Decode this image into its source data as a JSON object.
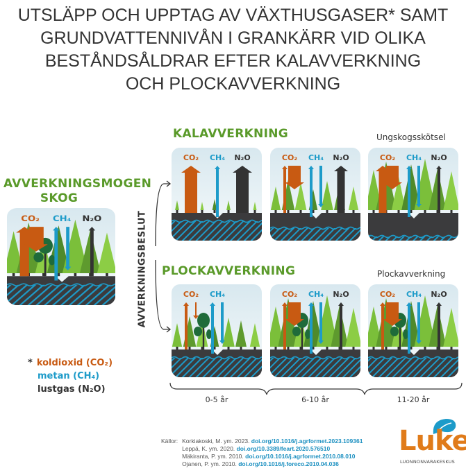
{
  "title": {
    "lines": [
      "UTSLÄPP OCH UPPTAG AV VÄXTHUSGASER* SAMT",
      "GRUNDVATTENNIVÅN I GRANKÄRR VID OLIKA",
      "BESTÅNDSÅLDRAR EFTER KALAVVERKNING",
      "OCH PLOCKAVVERKNING"
    ]
  },
  "colors": {
    "co2": "#c85a12",
    "ch4": "#1d9bc9",
    "n2o": "#333333",
    "heading_green": "#5a9a2a",
    "ground": "#3b3b3d"
  },
  "start": {
    "heading_line1": "AVVERKNINGSMOGEN",
    "heading_line2": "SKOG",
    "decision": "AVVERKNINGSBESLUT",
    "panel": {
      "stand": "mature",
      "deciduous": true,
      "water_level": "high",
      "arrows": [
        {
          "gas": "co2",
          "direction": "up",
          "strength": "medium"
        },
        {
          "gas": "co2",
          "direction": "down",
          "strength": "large"
        },
        {
          "gas": "ch4",
          "direction": "up",
          "strength": "small"
        },
        {
          "gas": "ch4",
          "direction": "down",
          "strength": "small"
        },
        {
          "gas": "n2o",
          "direction": "up",
          "strength": "small"
        }
      ]
    }
  },
  "gas_labels": {
    "co2": "CO₂",
    "ch4": "CH₄",
    "n2o": "N₂O"
  },
  "clearcut": {
    "heading": "KALAVVERKNING",
    "final_label": "Ungskogsskötsel",
    "panels": [
      {
        "stand": "seedlings",
        "deciduous": false,
        "water_level": "high",
        "arrows": [
          {
            "gas": "co2",
            "direction": "up",
            "strength": "large"
          },
          {
            "gas": "ch4",
            "direction": "up",
            "strength": "small"
          },
          {
            "gas": "n2o",
            "direction": "up",
            "strength": "large"
          }
        ]
      },
      {
        "stand": "young",
        "deciduous": false,
        "water_level": "mid",
        "arrows": [
          {
            "gas": "co2",
            "direction": "up",
            "strength": "small"
          },
          {
            "gas": "co2",
            "direction": "down",
            "strength": "large"
          },
          {
            "gas": "ch4",
            "direction": "up",
            "strength": "small"
          },
          {
            "gas": "ch4",
            "direction": "down",
            "strength": "small"
          },
          {
            "gas": "n2o",
            "direction": "up",
            "strength": "medium"
          }
        ]
      },
      {
        "stand": "mature",
        "deciduous": false,
        "water_level": "low",
        "arrows": [
          {
            "gas": "co2",
            "direction": "up",
            "strength": "medium"
          },
          {
            "gas": "co2",
            "direction": "down",
            "strength": "large"
          },
          {
            "gas": "ch4",
            "direction": "up",
            "strength": "small"
          },
          {
            "gas": "ch4",
            "direction": "down",
            "strength": "small"
          },
          {
            "gas": "n2o",
            "direction": "up",
            "strength": "small"
          }
        ]
      }
    ]
  },
  "selective": {
    "heading": "PLOCKAVVERKNING",
    "final_label": "Plockavverkning",
    "panels": [
      {
        "stand": "young",
        "deciduous": true,
        "water_level": "high",
        "arrows": [
          {
            "gas": "co2",
            "direction": "up",
            "strength": "small"
          },
          {
            "gas": "co2",
            "direction": "down",
            "strength": "tiny"
          },
          {
            "gas": "ch4",
            "direction": "up",
            "strength": "small"
          },
          {
            "gas": "ch4",
            "direction": "down",
            "strength": "small"
          }
        ]
      },
      {
        "stand": "mature",
        "deciduous": true,
        "water_level": "high",
        "arrows": [
          {
            "gas": "co2",
            "direction": "up",
            "strength": "small"
          },
          {
            "gas": "co2",
            "direction": "down",
            "strength": "large"
          },
          {
            "gas": "ch4",
            "direction": "up",
            "strength": "small"
          },
          {
            "gas": "ch4",
            "direction": "down",
            "strength": "small"
          },
          {
            "gas": "n2o",
            "direction": "up",
            "strength": "small"
          }
        ]
      },
      {
        "stand": "mature",
        "deciduous": true,
        "water_level": "high",
        "arrows": [
          {
            "gas": "co2",
            "direction": "up",
            "strength": "small"
          },
          {
            "gas": "co2",
            "direction": "down",
            "strength": "large"
          },
          {
            "gas": "ch4",
            "direction": "up",
            "strength": "small"
          },
          {
            "gas": "ch4",
            "direction": "down",
            "strength": "small"
          },
          {
            "gas": "n2o",
            "direction": "up",
            "strength": "small"
          }
        ]
      }
    ]
  },
  "periods": [
    "0-5 år",
    "6-10 år",
    "11-20 år"
  ],
  "legend": {
    "asterisk": "*",
    "co2": "koldioxid  (CO₂)",
    "ch4": "metan (CH₄)",
    "n2o": "lustgas (N₂O)"
  },
  "sources": {
    "label": "Källor:",
    "items": [
      {
        "text": "Korkiakoski, M. ym. 2023.",
        "doi": "doi.org/10.1016/j.agrformet.2023.109361"
      },
      {
        "text": "Leppä, K. ym. 2020.",
        "doi": "doi.org/10.3389/feart.2020.576510"
      },
      {
        "text": "Mäkiranta, P. ym. 2010.",
        "doi": "doi.org/10.1016/j.agrformet.2010.08.010"
      },
      {
        "text": "Ojanen, P. ym. 2010.",
        "doi": "doi.org/10.1016/j.foreco.2010.04.036"
      }
    ]
  },
  "logo": {
    "name": "Luke",
    "subtitle": "LUONNONVARAKESKUS"
  }
}
